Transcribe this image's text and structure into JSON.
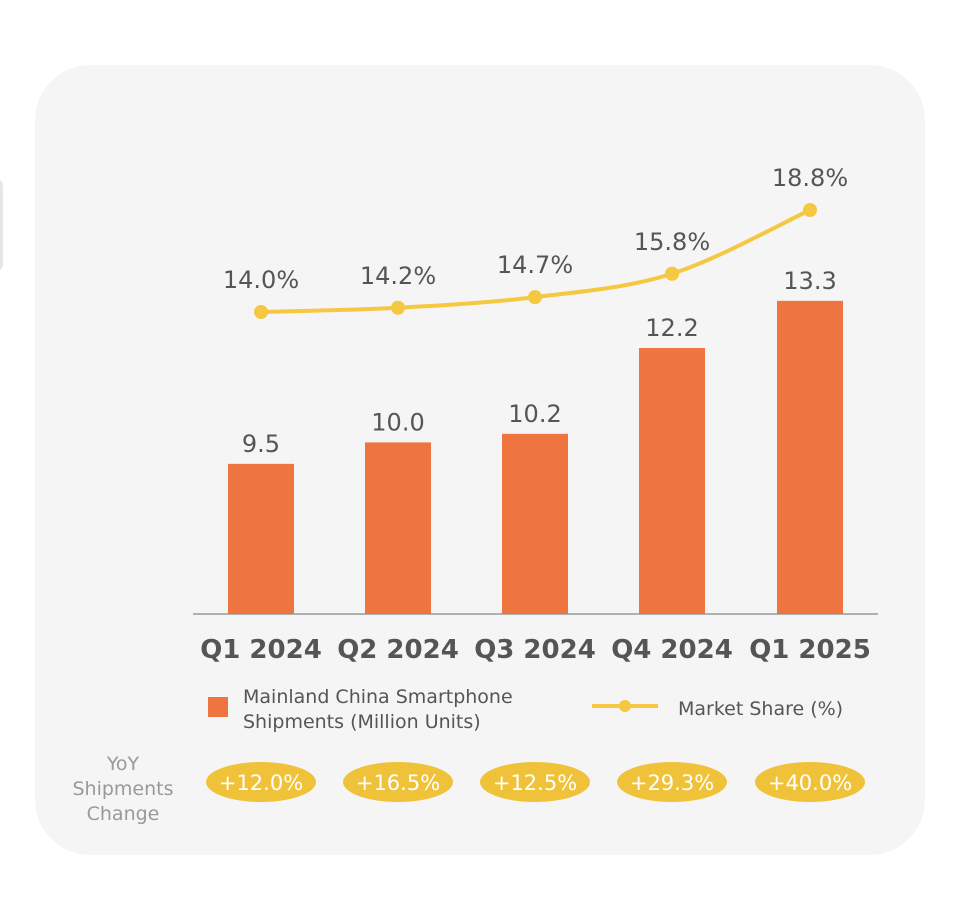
{
  "chart_data": {
    "type": "bar",
    "categories": [
      "Q1 2024",
      "Q2 2024",
      "Q3 2024",
      "Q4 2024",
      "Q1 2025"
    ],
    "series": [
      {
        "name": "Mainland China Smartphone Shipments (Million Units)",
        "kind": "bar",
        "values": [
          9.5,
          10.0,
          10.2,
          12.2,
          13.3
        ],
        "labels": [
          "9.5",
          "10.0",
          "10.2",
          "12.2",
          "13.3"
        ],
        "color": "#ee7440"
      },
      {
        "name": "Market Share (%)",
        "kind": "line",
        "values": [
          14.0,
          14.2,
          14.7,
          15.8,
          18.8
        ],
        "labels": [
          "14.0%",
          "14.2%",
          "14.7%",
          "15.8%",
          "18.8%"
        ],
        "color": "#f5c842"
      }
    ],
    "legend": {
      "bar_lines": [
        "Mainland China Smartphone",
        "Shipments (Million Units)"
      ],
      "line_label": "Market Share (%)",
      "placement": "bottom"
    },
    "yoy": {
      "title_lines": [
        "YoY",
        "Shipments",
        "Change"
      ],
      "values": [
        "+12.0%",
        "+16.5%",
        "+12.5%",
        "+29.3%",
        "+40.0%"
      ],
      "color": "#f0c23a"
    },
    "bar_axis_min": 6,
    "grid": false
  }
}
